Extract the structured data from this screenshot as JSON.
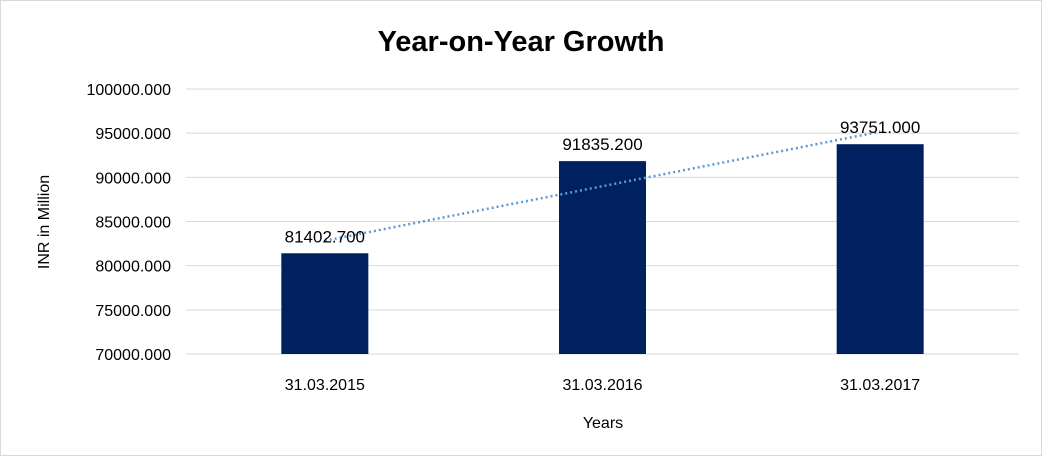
{
  "chart_data": {
    "type": "bar",
    "title": "Year-on-Year Growth",
    "xlabel": "Years",
    "ylabel": "INR in Million",
    "categories": [
      "31.03.2015",
      "31.03.2016",
      "31.03.2017"
    ],
    "values": [
      81402.7,
      91835.2,
      93751.0
    ],
    "data_labels": [
      "81402.700",
      "91835.200",
      "93751.000"
    ],
    "ylim": [
      70000,
      100000
    ],
    "yticks": [
      70000,
      75000,
      80000,
      85000,
      90000,
      95000,
      100000
    ],
    "ytick_labels": [
      "70000.000",
      "75000.000",
      "80000.000",
      "85000.000",
      "90000.000",
      "95000.000",
      "100000.000"
    ],
    "grid": true,
    "legend": "none",
    "trendline": "linear",
    "bar_color": "#002060",
    "trendline_color": "#5b9bd5",
    "grid_color": "#d9d9d9"
  }
}
